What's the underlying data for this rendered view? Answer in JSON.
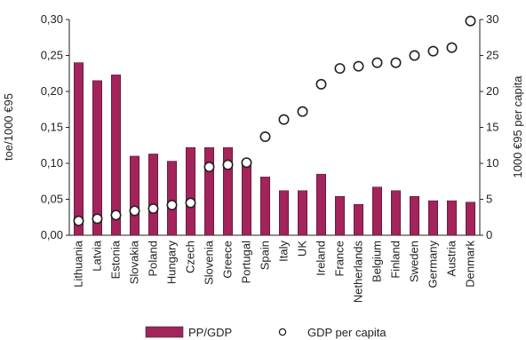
{
  "chart_data": {
    "type": "bar",
    "categories": [
      "Lithuania",
      "Latvia",
      "Estonia",
      "Slovakia",
      "Poland",
      "Hungary",
      "Czech",
      "Slovenia",
      "Greece",
      "Portugal",
      "Spain",
      "Italy",
      "UK",
      "Ireland",
      "France",
      "Netherlands",
      "Belgium",
      "Finland",
      "Sweden",
      "Germany",
      "Austria",
      "Denmark"
    ],
    "series": [
      {
        "name": "PP/GDP",
        "type": "bar",
        "axis": "left",
        "color": "#a3245a",
        "values": [
          0.24,
          0.215,
          0.223,
          0.11,
          0.113,
          0.103,
          0.122,
          0.122,
          0.122,
          0.1,
          0.081,
          0.062,
          0.062,
          0.085,
          0.054,
          0.043,
          0.067,
          0.062,
          0.054,
          0.048,
          0.048,
          0.046
        ]
      },
      {
        "name": "GDP per capita",
        "type": "scatter",
        "axis": "right",
        "values": [
          2.0,
          2.3,
          2.8,
          3.4,
          3.7,
          4.2,
          4.5,
          9.5,
          9.8,
          10.1,
          13.7,
          16.1,
          17.2,
          21.0,
          23.2,
          23.5,
          24.0,
          24.0,
          25.0,
          25.6,
          26.1,
          29.8
        ]
      }
    ],
    "ylabel": "toe/1000 €95",
    "y2label": "1000 €95 per capita",
    "ylim": [
      0,
      0.3
    ],
    "y2lim": [
      0,
      30
    ],
    "yticks": [
      "0,00",
      "0,05",
      "0,10",
      "0,15",
      "0,20",
      "0,25",
      "0,30"
    ],
    "y2ticks": [
      "0",
      "5",
      "10",
      "15",
      "20",
      "25",
      "30"
    ],
    "grid": false,
    "legend": "bottom"
  }
}
